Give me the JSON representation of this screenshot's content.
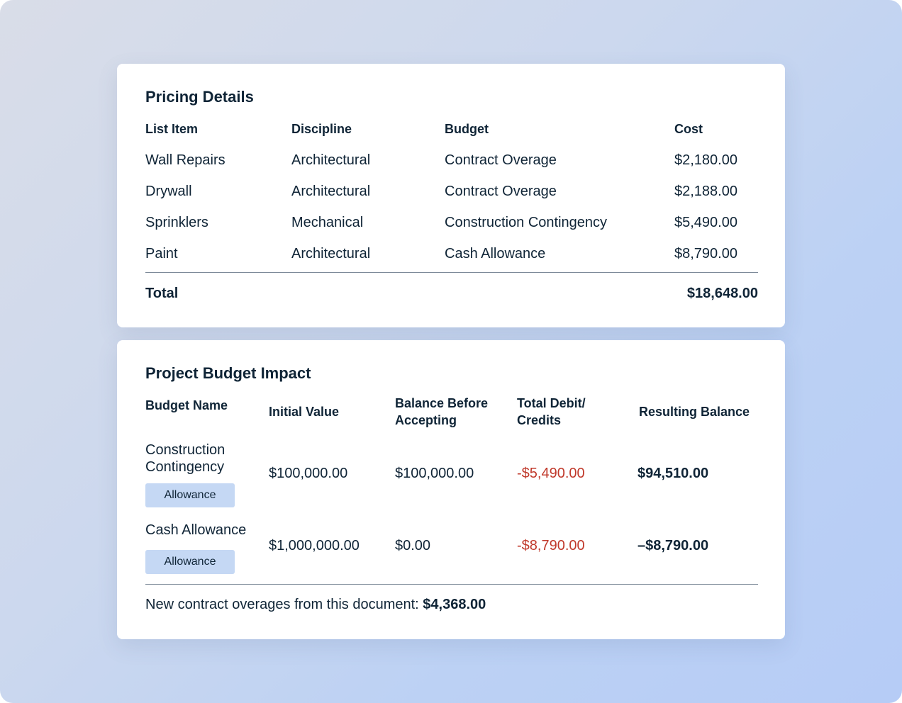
{
  "pricing": {
    "title": "Pricing Details",
    "headers": {
      "item": "List Item",
      "discipline": "Discipline",
      "budget": "Budget",
      "cost": "Cost"
    },
    "rows": [
      {
        "item": "Wall Repairs",
        "discipline": "Architectural",
        "budget": "Contract Overage",
        "cost": "$2,180.00"
      },
      {
        "item": "Drywall",
        "discipline": "Architectural",
        "budget": "Contract Overage",
        "cost": "$2,188.00"
      },
      {
        "item": "Sprinklers",
        "discipline": "Mechanical",
        "budget": "Construction Contingency",
        "cost": "$5,490.00"
      },
      {
        "item": "Paint",
        "discipline": "Architectural",
        "budget": "Cash Allowance",
        "cost": "$8,790.00"
      }
    ],
    "total_label": "Total",
    "total_value": "$18,648.00"
  },
  "impact": {
    "title": "Project Budget Impact",
    "headers": {
      "name": "Budget Name",
      "initial": "Initial Value",
      "balance_before": "Balance Before Accepting",
      "debit": "Total Debit/ Credits",
      "resulting": "Resulting Balance"
    },
    "rows": [
      {
        "name": "Construction Contingency",
        "badge": "Allowance",
        "initial": "$100,000.00",
        "balance_before": "$100,000.00",
        "debit": "-$5,490.00",
        "resulting": "$94,510.00"
      },
      {
        "name": "Cash Allowance",
        "badge": "Allowance",
        "initial": "$1,000,000.00",
        "balance_before": "$0.00",
        "debit": "-$8,790.00",
        "resulting": "–$8,790.00"
      }
    ],
    "footer_label": "New contract overages from this document:",
    "footer_value": "$4,368.00"
  },
  "colors": {
    "text": "#0f2436",
    "negative": "#c0392b",
    "badge_bg": "#c5d8f4"
  }
}
